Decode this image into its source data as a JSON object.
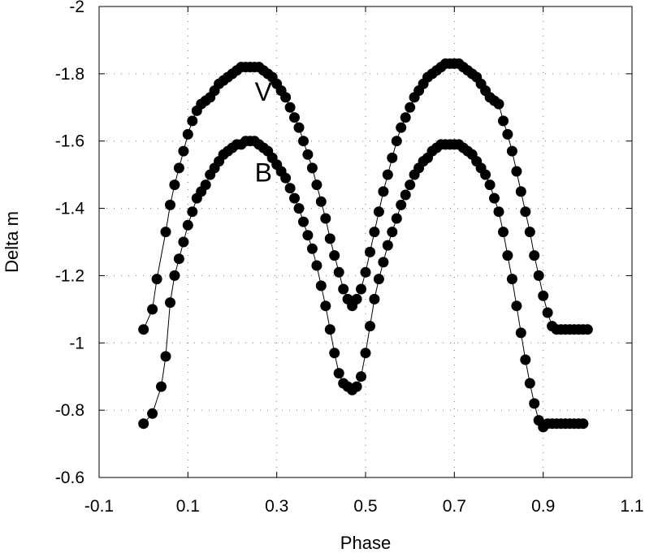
{
  "chart_data": {
    "type": "scatter",
    "xlabel": "Phase",
    "ylabel": "Delta m",
    "xlim": [
      -0.1,
      1.1
    ],
    "ylim": [
      -0.6,
      -2.0
    ],
    "y_axis_inverted": true,
    "x_ticks": [
      "-0.1",
      "0.1",
      "0.3",
      "0.5",
      "0.7",
      "0.9",
      "1.1"
    ],
    "y_ticks": [
      "-2",
      "-1.8",
      "-1.6",
      "-1.4",
      "-1.2",
      "-1",
      "-0.8",
      "-0.6"
    ],
    "grid": "dotted",
    "legend": "none",
    "series": [
      {
        "name": "V",
        "label_position": {
          "x": 0.27,
          "y": -1.72
        },
        "x": [
          0.0,
          0.02,
          0.03,
          0.05,
          0.06,
          0.07,
          0.08,
          0.09,
          0.1,
          0.11,
          0.12,
          0.13,
          0.14,
          0.15,
          0.16,
          0.17,
          0.18,
          0.19,
          0.2,
          0.21,
          0.22,
          0.23,
          0.24,
          0.25,
          0.26,
          0.27,
          0.28,
          0.29,
          0.3,
          0.31,
          0.32,
          0.33,
          0.34,
          0.35,
          0.36,
          0.37,
          0.38,
          0.39,
          0.4,
          0.41,
          0.42,
          0.43,
          0.44,
          0.45,
          0.46,
          0.47,
          0.48,
          0.49,
          0.5,
          0.51,
          0.52,
          0.53,
          0.54,
          0.55,
          0.56,
          0.57,
          0.58,
          0.59,
          0.6,
          0.61,
          0.62,
          0.63,
          0.64,
          0.65,
          0.66,
          0.67,
          0.68,
          0.69,
          0.7,
          0.71,
          0.72,
          0.73,
          0.74,
          0.75,
          0.76,
          0.77,
          0.78,
          0.79,
          0.8,
          0.81,
          0.82,
          0.83,
          0.84,
          0.85,
          0.86,
          0.87,
          0.88,
          0.89,
          0.9,
          0.91,
          0.92,
          0.93,
          0.94,
          0.95,
          0.96,
          0.97,
          0.98,
          0.99,
          1.0
        ],
        "y": [
          -1.04,
          -1.1,
          -1.19,
          -1.33,
          -1.41,
          -1.47,
          -1.52,
          -1.57,
          -1.62,
          -1.66,
          -1.69,
          -1.71,
          -1.72,
          -1.73,
          -1.75,
          -1.77,
          -1.78,
          -1.79,
          -1.8,
          -1.81,
          -1.82,
          -1.82,
          -1.82,
          -1.82,
          -1.82,
          -1.81,
          -1.8,
          -1.79,
          -1.77,
          -1.75,
          -1.73,
          -1.7,
          -1.67,
          -1.64,
          -1.6,
          -1.56,
          -1.52,
          -1.47,
          -1.42,
          -1.37,
          -1.31,
          -1.26,
          -1.21,
          -1.16,
          -1.13,
          -1.11,
          -1.13,
          -1.16,
          -1.21,
          -1.27,
          -1.33,
          -1.39,
          -1.45,
          -1.5,
          -1.55,
          -1.6,
          -1.64,
          -1.67,
          -1.7,
          -1.73,
          -1.75,
          -1.77,
          -1.79,
          -1.8,
          -1.81,
          -1.82,
          -1.83,
          -1.83,
          -1.83,
          -1.83,
          -1.82,
          -1.81,
          -1.8,
          -1.79,
          -1.77,
          -1.75,
          -1.73,
          -1.72,
          -1.71,
          -1.66,
          -1.62,
          -1.57,
          -1.51,
          -1.45,
          -1.39,
          -1.33,
          -1.26,
          -1.2,
          -1.14,
          -1.09,
          -1.05,
          -1.04,
          -1.04,
          -1.04,
          -1.04,
          -1.04,
          -1.04,
          -1.04,
          -1.04
        ]
      },
      {
        "name": "B",
        "label_position": {
          "x": 0.27,
          "y": -1.48
        },
        "x": [
          0.0,
          0.02,
          0.04,
          0.05,
          0.06,
          0.07,
          0.08,
          0.09,
          0.1,
          0.11,
          0.12,
          0.13,
          0.14,
          0.15,
          0.16,
          0.17,
          0.18,
          0.19,
          0.2,
          0.21,
          0.22,
          0.23,
          0.24,
          0.25,
          0.26,
          0.27,
          0.28,
          0.29,
          0.3,
          0.31,
          0.32,
          0.33,
          0.34,
          0.35,
          0.36,
          0.37,
          0.38,
          0.39,
          0.4,
          0.41,
          0.42,
          0.43,
          0.44,
          0.45,
          0.46,
          0.47,
          0.48,
          0.49,
          0.5,
          0.51,
          0.52,
          0.53,
          0.54,
          0.55,
          0.56,
          0.57,
          0.58,
          0.59,
          0.6,
          0.61,
          0.62,
          0.63,
          0.64,
          0.65,
          0.66,
          0.67,
          0.68,
          0.69,
          0.7,
          0.71,
          0.72,
          0.73,
          0.74,
          0.75,
          0.76,
          0.77,
          0.78,
          0.79,
          0.8,
          0.81,
          0.82,
          0.83,
          0.84,
          0.85,
          0.86,
          0.87,
          0.88,
          0.89,
          0.9,
          0.91,
          0.92,
          0.93,
          0.94,
          0.95,
          0.96,
          0.97,
          0.98,
          0.99
        ],
        "y": [
          -0.76,
          -0.79,
          -0.87,
          -0.96,
          -1.12,
          -1.2,
          -1.25,
          -1.3,
          -1.35,
          -1.39,
          -1.43,
          -1.45,
          -1.47,
          -1.5,
          -1.52,
          -1.54,
          -1.56,
          -1.57,
          -1.58,
          -1.59,
          -1.59,
          -1.6,
          -1.6,
          -1.6,
          -1.59,
          -1.58,
          -1.57,
          -1.55,
          -1.53,
          -1.51,
          -1.49,
          -1.46,
          -1.43,
          -1.4,
          -1.36,
          -1.32,
          -1.28,
          -1.23,
          -1.17,
          -1.11,
          -1.04,
          -0.97,
          -0.91,
          -0.88,
          -0.87,
          -0.86,
          -0.87,
          -0.9,
          -0.97,
          -1.05,
          -1.13,
          -1.19,
          -1.24,
          -1.29,
          -1.33,
          -1.37,
          -1.41,
          -1.44,
          -1.47,
          -1.5,
          -1.52,
          -1.54,
          -1.55,
          -1.57,
          -1.58,
          -1.59,
          -1.59,
          -1.59,
          -1.59,
          -1.59,
          -1.58,
          -1.57,
          -1.56,
          -1.54,
          -1.52,
          -1.5,
          -1.47,
          -1.43,
          -1.39,
          -1.33,
          -1.26,
          -1.19,
          -1.11,
          -1.03,
          -0.95,
          -0.88,
          -0.82,
          -0.77,
          -0.75,
          -0.76,
          -0.76,
          -0.76,
          -0.76,
          -0.76,
          -0.76,
          -0.76,
          -0.76,
          -0.76
        ]
      }
    ]
  }
}
